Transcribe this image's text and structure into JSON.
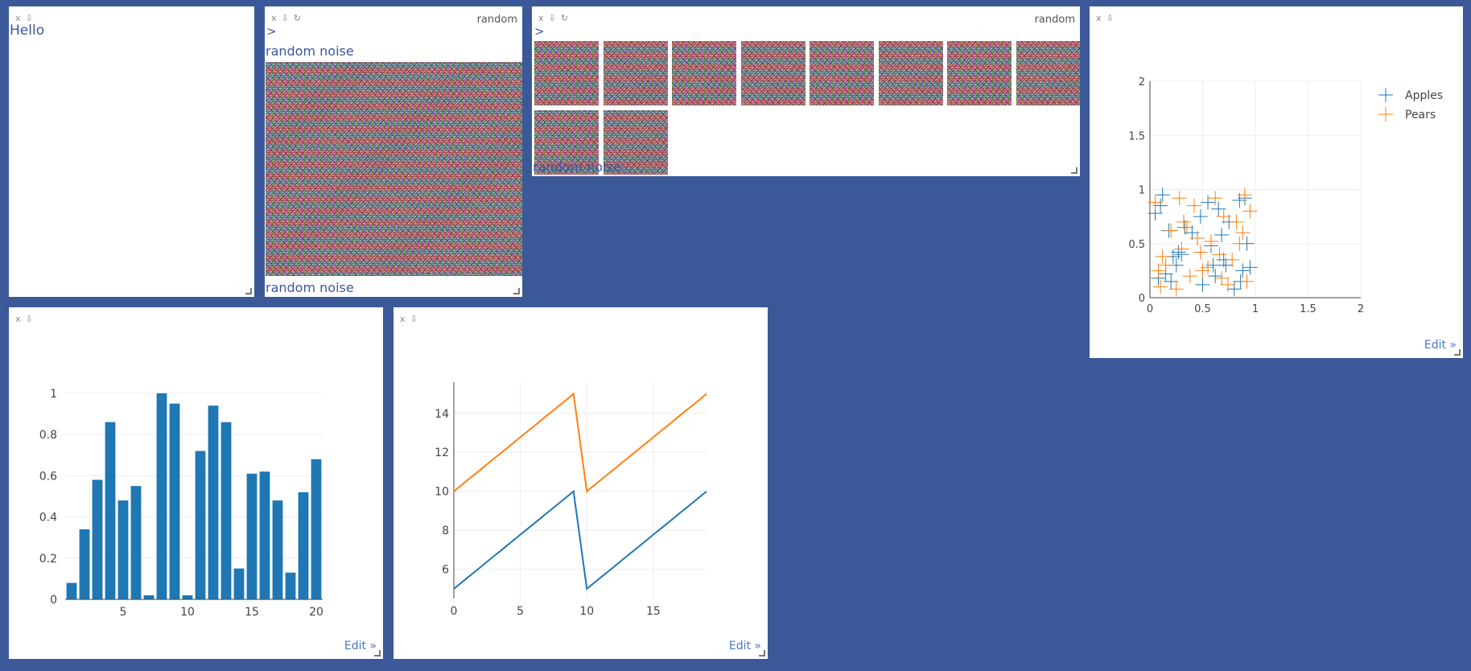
{
  "controls": {
    "close": "x",
    "download": "⇩",
    "refresh": "↻"
  },
  "env_label": "random",
  "pane_text": {
    "text": "Hello"
  },
  "pane_image": {
    "prompt": ">",
    "caption_top": "random noise",
    "caption_bottom": "random noise"
  },
  "pane_images": {
    "prompt": ">",
    "caption": "random noise",
    "count": 10
  },
  "edit_link": "Edit »",
  "scatter": {
    "chart_data": {
      "type": "scatter",
      "xlim": [
        0,
        2
      ],
      "ylim": [
        0,
        2
      ],
      "xticks": [
        "0",
        "0.5",
        "1",
        "1.5",
        "2"
      ],
      "yticks": [
        "0",
        "0.5",
        "1",
        "1.5",
        "2"
      ],
      "grid": true,
      "legend": "top-right",
      "series": [
        {
          "name": "Apples",
          "color": "#1f77b4",
          "marker": "cross",
          "x": [
            0.12,
            0.18,
            0.25,
            0.05,
            0.3,
            0.45,
            0.55,
            0.62,
            0.7,
            0.85,
            0.92,
            0.88,
            0.4,
            0.2,
            0.15,
            0.65,
            0.75,
            0.95,
            0.5,
            0.33,
            0.1,
            0.08,
            0.58,
            0.8,
            0.72,
            0.22,
            0.9,
            0.68,
            0.48,
            0.27,
            0.86,
            0.6
          ],
          "y": [
            0.95,
            0.62,
            0.3,
            0.78,
            0.4,
            0.55,
            0.88,
            0.2,
            0.35,
            0.9,
            0.5,
            0.25,
            0.6,
            0.15,
            0.22,
            0.82,
            0.7,
            0.28,
            0.12,
            0.65,
            0.85,
            0.18,
            0.48,
            0.08,
            0.3,
            0.38,
            0.92,
            0.58,
            0.75,
            0.42,
            0.15,
            0.3
          ]
        },
        {
          "name": "Pears",
          "color": "#ff7f0e",
          "marker": "cross",
          "x": [
            0.05,
            0.15,
            0.28,
            0.35,
            0.42,
            0.5,
            0.58,
            0.66,
            0.74,
            0.82,
            0.9,
            0.95,
            0.2,
            0.1,
            0.3,
            0.45,
            0.62,
            0.78,
            0.88,
            0.55,
            0.25,
            0.38,
            0.7,
            0.85,
            0.12,
            0.92,
            0.48,
            0.68,
            0.08,
            0.32
          ],
          "y": [
            0.88,
            0.3,
            0.92,
            0.65,
            0.85,
            0.25,
            0.52,
            0.4,
            0.12,
            0.7,
            0.95,
            0.8,
            0.62,
            0.1,
            0.45,
            0.55,
            0.92,
            0.35,
            0.6,
            0.28,
            0.08,
            0.2,
            0.75,
            0.5,
            0.38,
            0.15,
            0.42,
            0.18,
            0.25,
            0.7
          ]
        }
      ]
    }
  },
  "bars": {
    "chart_data": {
      "type": "bar",
      "categories": [
        1,
        2,
        3,
        4,
        5,
        6,
        7,
        8,
        9,
        10,
        11,
        12,
        13,
        14,
        15,
        16,
        17,
        18,
        19,
        20
      ],
      "values": [
        0.08,
        0.34,
        0.58,
        0.86,
        0.48,
        0.55,
        0.02,
        1.0,
        0.95,
        0.02,
        0.72,
        0.94,
        0.86,
        0.15,
        0.61,
        0.62,
        0.48,
        0.13,
        0.52,
        0.68
      ],
      "color": "#1f77b4",
      "ylim": [
        0,
        1.05
      ],
      "xticks": [
        "5",
        "10",
        "15",
        "20"
      ],
      "yticks": [
        "0",
        "0.2",
        "0.4",
        "0.6",
        "0.8",
        "1"
      ]
    }
  },
  "lines": {
    "chart_data": {
      "type": "line",
      "x": [
        0,
        1,
        2,
        3,
        4,
        5,
        6,
        7,
        8,
        9,
        10,
        11,
        12,
        13,
        14,
        15,
        16,
        17,
        18,
        19
      ],
      "series": [
        {
          "color": "#1f77b4",
          "values": [
            5,
            5.56,
            6.11,
            6.67,
            7.22,
            7.78,
            8.33,
            8.89,
            9.44,
            10,
            5,
            5.56,
            6.11,
            6.67,
            7.22,
            7.78,
            8.33,
            8.89,
            9.44,
            10
          ]
        },
        {
          "color": "#ff7f0e",
          "values": [
            10,
            10.56,
            11.11,
            11.67,
            12.22,
            12.78,
            13.33,
            13.89,
            14.44,
            15,
            10,
            10.56,
            11.11,
            11.67,
            12.22,
            12.78,
            13.33,
            13.89,
            14.44,
            15
          ]
        }
      ],
      "xlim": [
        0,
        19
      ],
      "ylim": [
        4.5,
        15.6
      ],
      "xticks": [
        "0",
        "5",
        "10",
        "15"
      ],
      "yticks": [
        "6",
        "8",
        "10",
        "12",
        "14"
      ],
      "grid": true
    }
  }
}
